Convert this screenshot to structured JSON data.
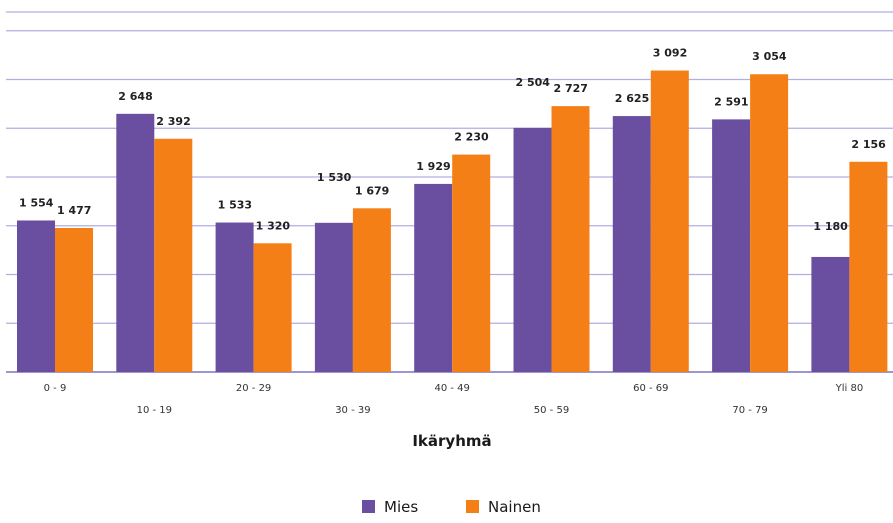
{
  "chart_data": {
    "type": "bar",
    "categories": [
      "0 - 9",
      "10 - 19",
      "20 - 29",
      "30 - 39",
      "40 - 49",
      "50 - 59",
      "60 - 69",
      "70 - 79",
      "Yli 80"
    ],
    "series": [
      {
        "name": "Mies",
        "color": "#6a4fa0",
        "values": [
          1554,
          2648,
          1533,
          1530,
          1929,
          2504,
          2625,
          2591,
          1180
        ],
        "labels": [
          "1 554",
          "2 648",
          "1 533",
          "1 530",
          "1 929",
          "2 504",
          "2 625",
          "2 591",
          "1 180"
        ]
      },
      {
        "name": "Nainen",
        "color": "#f57f17",
        "values": [
          1477,
          2392,
          1320,
          1679,
          2230,
          2727,
          3092,
          3054,
          2156
        ],
        "labels": [
          "1 477",
          "2 392",
          "1 320",
          "1 679",
          "2 230",
          "2 727",
          "3 092",
          "3 054",
          "2 156"
        ]
      }
    ],
    "xlabel": "Ikäryhmä",
    "ylim": [
      0,
      3500
    ],
    "grid": true,
    "legend": "bottom"
  }
}
